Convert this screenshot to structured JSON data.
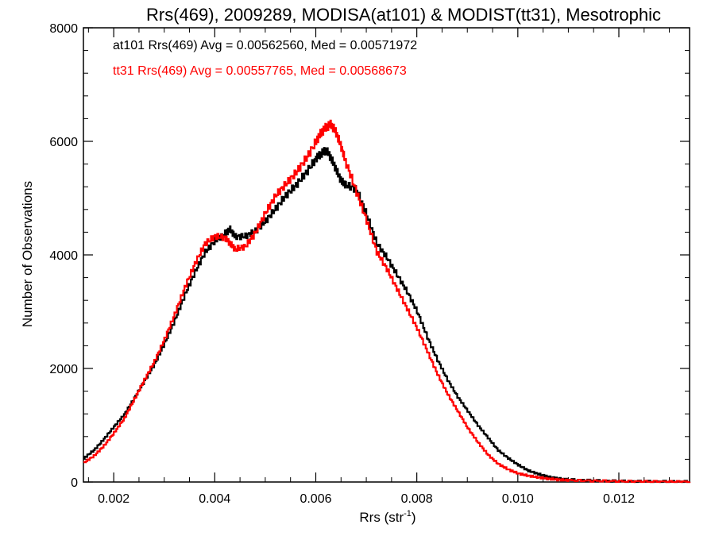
{
  "chart_data": {
    "type": "line",
    "step": true,
    "title": "Rrs(469), 2009289, MODISA(at101) & MODIST(tt31), Mesotrophic",
    "xlabel": "Rrs (str",
    "xlabel_sup": "-1",
    "xlabel_close": ")",
    "ylabel": "Number of Observations",
    "xlim": [
      0.0014,
      0.0134
    ],
    "ylim": [
      0,
      8000
    ],
    "xticks": [
      0.002,
      0.004,
      0.006,
      0.008,
      0.01,
      0.012
    ],
    "xtick_labels": [
      "0.002",
      "0.004",
      "0.006",
      "0.008",
      "0.010",
      "0.012"
    ],
    "yticks": [
      0,
      2000,
      4000,
      6000,
      8000
    ],
    "ytick_labels": [
      "0",
      "2000",
      "4000",
      "6000",
      "8000"
    ],
    "grid": false,
    "legend_position": "top-left",
    "series": [
      {
        "name": "at101",
        "color": "#000000",
        "legend_text": "at101 Rrs(469) Avg = 0.00562560, Med = 0.00571972",
        "x": [
          0.0014,
          0.0016,
          0.0018,
          0.002,
          0.0022,
          0.0024,
          0.0026,
          0.0028,
          0.003,
          0.0032,
          0.0034,
          0.0036,
          0.0038,
          0.004,
          0.0042,
          0.0043,
          0.0044,
          0.0046,
          0.0048,
          0.005,
          0.0052,
          0.0054,
          0.0056,
          0.0058,
          0.006,
          0.0061,
          0.0062,
          0.0063,
          0.0064,
          0.0065,
          0.0066,
          0.0068,
          0.007,
          0.0072,
          0.0074,
          0.0076,
          0.0078,
          0.008,
          0.0082,
          0.0084,
          0.0086,
          0.0088,
          0.009,
          0.0092,
          0.0094,
          0.0096,
          0.0098,
          0.01,
          0.0102,
          0.0104,
          0.0106,
          0.0108,
          0.011,
          0.0115,
          0.012,
          0.0125,
          0.013,
          0.0134
        ],
        "values": [
          420,
          560,
          760,
          980,
          1190,
          1480,
          1780,
          2080,
          2450,
          2850,
          3300,
          3700,
          4050,
          4250,
          4380,
          4450,
          4320,
          4330,
          4420,
          4600,
          4820,
          5050,
          5230,
          5450,
          5700,
          5780,
          5850,
          5700,
          5500,
          5300,
          5230,
          5150,
          4700,
          4200,
          3950,
          3650,
          3350,
          3000,
          2550,
          2150,
          1800,
          1500,
          1250,
          1000,
          780,
          560,
          420,
          300,
          200,
          140,
          90,
          60,
          40,
          25,
          15,
          10,
          8,
          5
        ]
      },
      {
        "name": "tt31",
        "color": "#ff0000",
        "legend_text": "tt31 Rrs(469) Avg = 0.00557765, Med = 0.00568673",
        "x": [
          0.0014,
          0.0016,
          0.0018,
          0.002,
          0.0022,
          0.0024,
          0.0026,
          0.0028,
          0.003,
          0.0032,
          0.0034,
          0.0036,
          0.0038,
          0.004,
          0.0042,
          0.0043,
          0.0044,
          0.0046,
          0.0048,
          0.005,
          0.0052,
          0.0054,
          0.0056,
          0.0058,
          0.006,
          0.0061,
          0.0062,
          0.0063,
          0.0064,
          0.0065,
          0.0066,
          0.0068,
          0.007,
          0.0072,
          0.0074,
          0.0076,
          0.0078,
          0.008,
          0.0082,
          0.0084,
          0.0086,
          0.0088,
          0.009,
          0.0092,
          0.0094,
          0.0096,
          0.0098,
          0.01,
          0.0102,
          0.0104,
          0.0106,
          0.0108,
          0.011,
          0.0115,
          0.012,
          0.0125,
          0.013,
          0.0134
        ],
        "values": [
          340,
          460,
          640,
          870,
          1120,
          1460,
          1800,
          2130,
          2520,
          2960,
          3430,
          3850,
          4200,
          4330,
          4300,
          4200,
          4100,
          4150,
          4400,
          4750,
          5050,
          5250,
          5450,
          5700,
          6000,
          6150,
          6250,
          6300,
          6150,
          5900,
          5600,
          5100,
          4600,
          4050,
          3750,
          3400,
          3050,
          2700,
          2300,
          1900,
          1550,
          1250,
          950,
          700,
          480,
          320,
          220,
          150,
          110,
          80,
          55,
          40,
          30,
          20,
          12,
          8,
          5,
          3
        ]
      }
    ]
  }
}
